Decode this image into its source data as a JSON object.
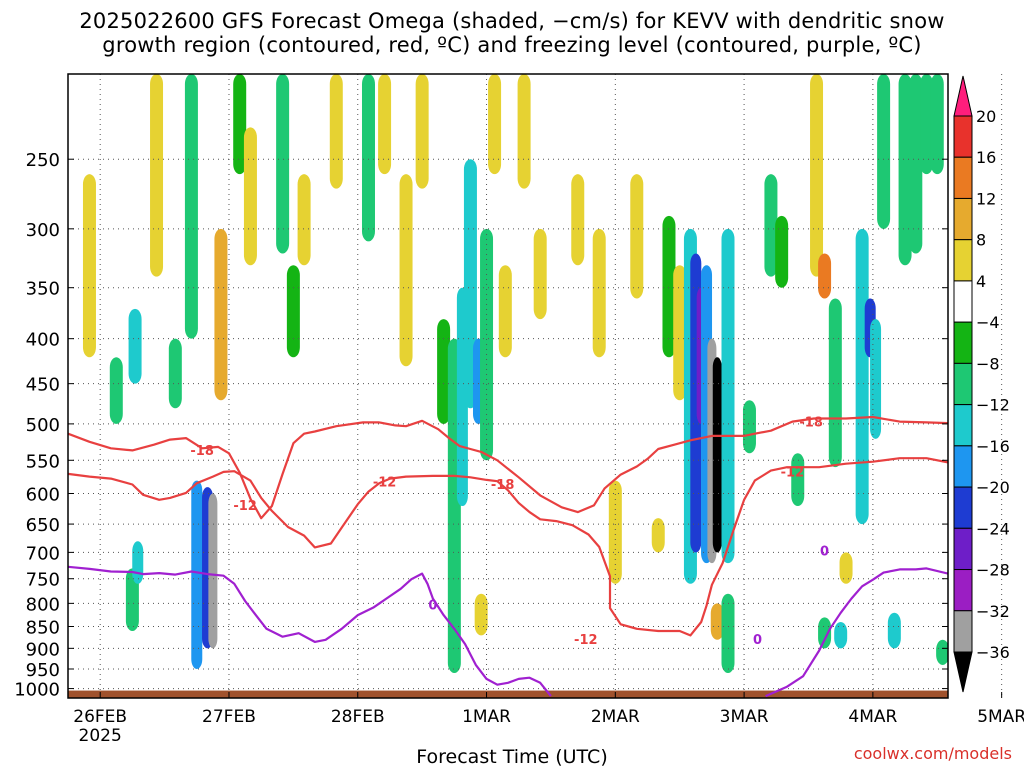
{
  "title_line1": "2025022600 GFS Forecast Omega (shaded, −cm/s) for KEVV with dendritic snow",
  "title_line2": "growth region (contoured, red, ºC) and freezing level (contoured, purple, ºC)",
  "credit": "coolwx.com/models",
  "chart_data": {
    "type": "heatmap",
    "title": "2025022600 GFS Forecast Omega (shaded, −cm/s) for KEVV with dendritic snow growth region (contoured, red, ºC) and freezing level (contoured, purple, ºC)",
    "xlabel": "Forecast Time (UTC)",
    "ylabel": "",
    "x_ticks": [
      "26FEB",
      "27FEB",
      "28FEB",
      "1MAR",
      "2MAR",
      "3MAR",
      "4MAR",
      "5MAR"
    ],
    "x_tick_year": "2025",
    "xlim_hours": [
      0,
      164
    ],
    "y_ticks": [
      250,
      300,
      350,
      400,
      450,
      500,
      550,
      600,
      650,
      700,
      750,
      800,
      850,
      900,
      950,
      1000
    ],
    "ylim_hpa": [
      1025,
      200
    ],
    "y_scale": "log-pressure",
    "grid": true,
    "colorbar": {
      "labels": [
        "20",
        "16",
        "12",
        "8",
        "4",
        "−4",
        "−8",
        "−12",
        "−16",
        "−20",
        "−24",
        "−28",
        "−32",
        "−36"
      ],
      "colors": [
        "#ff1e7c",
        "#e8322c",
        "#ea7a22",
        "#e6aa2e",
        "#e6d232",
        "#ffffff",
        "#14b414",
        "#1ec873",
        "#1ecacd",
        "#1e96f0",
        "#1e3cd2",
        "#6e1ec8",
        "#9b1ec3",
        "#a0a0a0",
        "#000000"
      ]
    },
    "ground_color": "#a0522d",
    "omega_blobs": [
      {
        "t": 4.0,
        "p1": 260,
        "p2": 420,
        "v": 6
      },
      {
        "t": 9.0,
        "p1": 420,
        "p2": 500,
        "v": -8
      },
      {
        "t": 12.5,
        "p1": 370,
        "p2": 450,
        "v": -12
      },
      {
        "t": 12.0,
        "p1": 730,
        "p2": 860,
        "v": -10
      },
      {
        "t": 13.0,
        "p1": 680,
        "p2": 760,
        "v": -14
      },
      {
        "t": 16.5,
        "p1": 200,
        "p2": 340,
        "v": 6
      },
      {
        "t": 20.0,
        "p1": 400,
        "p2": 480,
        "v": -8
      },
      {
        "t": 23.0,
        "p1": 200,
        "p2": 400,
        "v": -10
      },
      {
        "t": 24.0,
        "p1": 580,
        "p2": 950,
        "v": -18
      },
      {
        "t": 26.0,
        "p1": 590,
        "p2": 900,
        "v": -22
      },
      {
        "t": 27.0,
        "p1": 600,
        "p2": 900,
        "v": -34
      },
      {
        "t": 28.5,
        "p1": 300,
        "p2": 470,
        "v": 10
      },
      {
        "t": 32.0,
        "p1": 200,
        "p2": 260,
        "v": -6
      },
      {
        "t": 34.0,
        "p1": 230,
        "p2": 330,
        "v": 6
      },
      {
        "t": 40.0,
        "p1": 200,
        "p2": 320,
        "v": -8
      },
      {
        "t": 42.0,
        "p1": 330,
        "p2": 420,
        "v": -6
      },
      {
        "t": 44.0,
        "p1": 260,
        "p2": 330,
        "v": 6
      },
      {
        "t": 50.0,
        "p1": 200,
        "p2": 270,
        "v": 5
      },
      {
        "t": 56.0,
        "p1": 200,
        "p2": 310,
        "v": -8
      },
      {
        "t": 59.0,
        "p1": 200,
        "p2": 260,
        "v": 5
      },
      {
        "t": 63.0,
        "p1": 260,
        "p2": 430,
        "v": 5
      },
      {
        "t": 66.0,
        "p1": 200,
        "p2": 270,
        "v": 6
      },
      {
        "t": 70.0,
        "p1": 380,
        "p2": 500,
        "v": -6
      },
      {
        "t": 72.0,
        "p1": 400,
        "p2": 960,
        "v": -10
      },
      {
        "t": 73.5,
        "p1": 350,
        "p2": 620,
        "v": -14
      },
      {
        "t": 75.0,
        "p1": 250,
        "p2": 480,
        "v": -12
      },
      {
        "t": 76.5,
        "p1": 400,
        "p2": 500,
        "v": -18
      },
      {
        "t": 78.0,
        "p1": 300,
        "p2": 550,
        "v": -10
      },
      {
        "t": 77.0,
        "p1": 780,
        "p2": 870,
        "v": 5
      },
      {
        "t": 79.5,
        "p1": 200,
        "p2": 260,
        "v": 6
      },
      {
        "t": 81.5,
        "p1": 330,
        "p2": 420,
        "v": 6
      },
      {
        "t": 85.0,
        "p1": 200,
        "p2": 270,
        "v": 5
      },
      {
        "t": 88.0,
        "p1": 300,
        "p2": 380,
        "v": 5
      },
      {
        "t": 95.0,
        "p1": 260,
        "p2": 330,
        "v": 6
      },
      {
        "t": 99.0,
        "p1": 300,
        "p2": 420,
        "v": 5
      },
      {
        "t": 102.0,
        "p1": 580,
        "p2": 760,
        "v": 5
      },
      {
        "t": 106.0,
        "p1": 260,
        "p2": 360,
        "v": 5
      },
      {
        "t": 110.0,
        "p1": 640,
        "p2": 700,
        "v": 5
      },
      {
        "t": 112.0,
        "p1": 290,
        "p2": 420,
        "v": -6
      },
      {
        "t": 114.0,
        "p1": 330,
        "p2": 470,
        "v": 6
      },
      {
        "t": 116.0,
        "p1": 300,
        "p2": 760,
        "v": -12
      },
      {
        "t": 117.0,
        "p1": 320,
        "p2": 700,
        "v": -20
      },
      {
        "t": 118.0,
        "p1": 350,
        "p2": 500,
        "v": -26
      },
      {
        "t": 119.0,
        "p1": 330,
        "p2": 720,
        "v": -16
      },
      {
        "t": 120.0,
        "p1": 400,
        "p2": 720,
        "v": -32
      },
      {
        "t": 121.0,
        "p1": 420,
        "p2": 700,
        "v": -36
      },
      {
        "t": 121.0,
        "p1": 800,
        "p2": 880,
        "v": 10
      },
      {
        "t": 123.0,
        "p1": 300,
        "p2": 720,
        "v": -12
      },
      {
        "t": 123.0,
        "p1": 780,
        "p2": 960,
        "v": -8
      },
      {
        "t": 127.0,
        "p1": 470,
        "p2": 540,
        "v": -8
      },
      {
        "t": 131.0,
        "p1": 260,
        "p2": 340,
        "v": -8
      },
      {
        "t": 133.0,
        "p1": 290,
        "p2": 350,
        "v": -6
      },
      {
        "t": 136.0,
        "p1": 540,
        "p2": 620,
        "v": -8
      },
      {
        "t": 139.5,
        "p1": 200,
        "p2": 340,
        "v": 6
      },
      {
        "t": 141.0,
        "p1": 320,
        "p2": 360,
        "v": 12
      },
      {
        "t": 143.0,
        "p1": 360,
        "p2": 560,
        "v": -10
      },
      {
        "t": 141.0,
        "p1": 830,
        "p2": 900,
        "v": -8
      },
      {
        "t": 144.0,
        "p1": 840,
        "p2": 900,
        "v": -12
      },
      {
        "t": 145.0,
        "p1": 700,
        "p2": 760,
        "v": 5
      },
      {
        "t": 148.0,
        "p1": 300,
        "p2": 650,
        "v": -12
      },
      {
        "t": 149.5,
        "p1": 360,
        "p2": 420,
        "v": -22
      },
      {
        "t": 150.5,
        "p1": 380,
        "p2": 520,
        "v": -14
      },
      {
        "t": 152.0,
        "p1": 200,
        "p2": 300,
        "v": -8
      },
      {
        "t": 154.0,
        "p1": 820,
        "p2": 900,
        "v": -12
      },
      {
        "t": 156.0,
        "p1": 200,
        "p2": 330,
        "v": -10
      },
      {
        "t": 158.0,
        "p1": 200,
        "p2": 320,
        "v": -10
      },
      {
        "t": 160.0,
        "p1": 200,
        "p2": 260,
        "v": -10
      },
      {
        "t": 162.0,
        "p1": 200,
        "p2": 260,
        "v": -8
      },
      {
        "t": 163.0,
        "p1": 880,
        "p2": 940,
        "v": -8
      }
    ],
    "contours": [
      {
        "name": "",
        "level": "-18",
        "color": "#e84040",
        "points": [
          [
            0,
            513
          ],
          [
            4,
            524
          ],
          [
            8,
            533
          ],
          [
            12,
            536
          ],
          [
            16,
            528
          ],
          [
            19,
            521
          ],
          [
            22,
            519
          ],
          [
            25,
            533
          ],
          [
            28,
            531
          ],
          [
            30,
            540
          ],
          [
            32,
            568
          ],
          [
            34,
            608
          ],
          [
            36,
            640
          ],
          [
            38,
            620
          ],
          [
            40,
            570
          ],
          [
            42,
            526
          ],
          [
            44,
            513
          ],
          [
            46,
            510
          ],
          [
            50,
            503
          ],
          [
            55,
            498
          ],
          [
            58,
            498
          ],
          [
            61,
            502
          ],
          [
            63,
            503
          ],
          [
            66,
            496
          ],
          [
            69,
            507
          ],
          [
            71,
            519
          ],
          [
            73,
            530
          ],
          [
            75,
            534
          ],
          [
            77,
            538
          ],
          [
            80,
            550
          ],
          [
            84,
            575
          ],
          [
            88,
            603
          ],
          [
            92,
            622
          ],
          [
            95,
            630
          ],
          [
            98,
            619
          ],
          [
            100,
            592
          ],
          [
            103,
            571
          ],
          [
            106,
            559
          ],
          [
            108,
            548
          ],
          [
            110,
            534
          ],
          [
            113,
            528
          ],
          [
            116,
            522
          ],
          [
            120,
            516
          ],
          [
            126,
            516
          ],
          [
            128,
            513
          ],
          [
            131,
            509
          ],
          [
            135,
            497
          ],
          [
            139,
            493
          ],
          [
            145,
            493
          ],
          [
            150,
            491
          ],
          [
            155,
            497
          ],
          [
            160,
            498
          ],
          [
            164,
            499
          ]
        ]
      },
      {
        "name": "",
        "level": "-12",
        "color": "#e84040",
        "points": [
          [
            0,
            570
          ],
          [
            4,
            574
          ],
          [
            8,
            577
          ],
          [
            12,
            586
          ],
          [
            14,
            602
          ],
          [
            17,
            610
          ],
          [
            19,
            607
          ],
          [
            22,
            599
          ],
          [
            24,
            584
          ],
          [
            27,
            574
          ],
          [
            29,
            567
          ],
          [
            31,
            566
          ],
          [
            34,
            580
          ],
          [
            36,
            607
          ],
          [
            38,
            628
          ],
          [
            41,
            655
          ],
          [
            44,
            670
          ],
          [
            46,
            691
          ],
          [
            49,
            684
          ],
          [
            51,
            656
          ],
          [
            54,
            617
          ],
          [
            56,
            597
          ],
          [
            58,
            584
          ],
          [
            60,
            577
          ],
          [
            63,
            574
          ],
          [
            68,
            573
          ],
          [
            72,
            573
          ],
          [
            75,
            575
          ],
          [
            78,
            579
          ],
          [
            80,
            581
          ],
          [
            82,
            595
          ],
          [
            84,
            615
          ],
          [
            86,
            630
          ],
          [
            88,
            642
          ],
          [
            91,
            645
          ],
          [
            94,
            652
          ],
          [
            97,
            668
          ],
          [
            99,
            690
          ],
          [
            101,
            745
          ],
          [
            101,
            810
          ],
          [
            103,
            845
          ],
          [
            106,
            855
          ],
          [
            110,
            860
          ],
          [
            114,
            860
          ],
          [
            116,
            870
          ],
          [
            118,
            840
          ],
          [
            119,
            805
          ],
          [
            120,
            762
          ],
          [
            122,
            720
          ],
          [
            124,
            661
          ],
          [
            126,
            610
          ],
          [
            128,
            580
          ],
          [
            131,
            565
          ],
          [
            134,
            560
          ],
          [
            137,
            560
          ],
          [
            140,
            560
          ],
          [
            145,
            555
          ],
          [
            150,
            552
          ],
          [
            155,
            547
          ],
          [
            160,
            547
          ],
          [
            164,
            553
          ]
        ]
      },
      {
        "name": "",
        "level": "0",
        "color": "#a020d0",
        "points": [
          [
            0,
            727
          ],
          [
            4,
            731
          ],
          [
            8,
            736
          ],
          [
            12,
            737
          ],
          [
            14,
            741
          ],
          [
            17,
            739
          ],
          [
            20,
            742
          ],
          [
            23,
            736
          ],
          [
            26,
            741
          ],
          [
            29,
            744
          ],
          [
            31,
            760
          ],
          [
            33,
            795
          ],
          [
            35,
            825
          ],
          [
            37,
            855
          ],
          [
            40,
            873
          ],
          [
            43,
            865
          ],
          [
            46,
            885
          ],
          [
            48,
            880
          ],
          [
            51,
            855
          ],
          [
            54,
            825
          ],
          [
            57,
            808
          ],
          [
            60,
            785
          ],
          [
            62,
            770
          ],
          [
            64,
            751
          ],
          [
            66,
            740
          ],
          [
            67,
            760
          ],
          [
            68,
            790
          ],
          [
            70,
            825
          ],
          [
            72,
            855
          ],
          [
            74,
            890
          ],
          [
            76,
            940
          ],
          [
            78,
            975
          ],
          [
            80,
            990
          ],
          [
            82,
            985
          ],
          [
            84,
            975
          ],
          [
            86,
            972
          ],
          [
            88,
            985
          ],
          [
            90,
            1020
          ]
        ]
      },
      {
        "name": "",
        "level": "0",
        "color": "#a020d0",
        "points": [
          [
            130,
            1020
          ],
          [
            134,
            995
          ],
          [
            137,
            968
          ],
          [
            140,
            905
          ],
          [
            142,
            855
          ],
          [
            144,
            820
          ],
          [
            146,
            790
          ],
          [
            148,
            765
          ],
          [
            150,
            752
          ],
          [
            152,
            738
          ],
          [
            155,
            732
          ],
          [
            158,
            732
          ],
          [
            160,
            730
          ],
          [
            164,
            740
          ]
        ]
      }
    ],
    "contour_labels": [
      {
        "text": "-18",
        "t": 25.0,
        "p": 537
      },
      {
        "text": "-12",
        "t": 33.0,
        "p": 620
      },
      {
        "text": "-12",
        "t": 59.0,
        "p": 583
      },
      {
        "text": "-18",
        "t": 81.0,
        "p": 587
      },
      {
        "text": "-12",
        "t": 96.5,
        "p": 880
      },
      {
        "text": "0",
        "t": 68.0,
        "p": 805
      },
      {
        "text": "0",
        "t": 128.5,
        "p": 880
      },
      {
        "text": "-18",
        "t": 138.5,
        "p": 498
      },
      {
        "text": "-12",
        "t": 135.0,
        "p": 568
      },
      {
        "text": "0",
        "t": 141.0,
        "p": 698
      }
    ]
  }
}
